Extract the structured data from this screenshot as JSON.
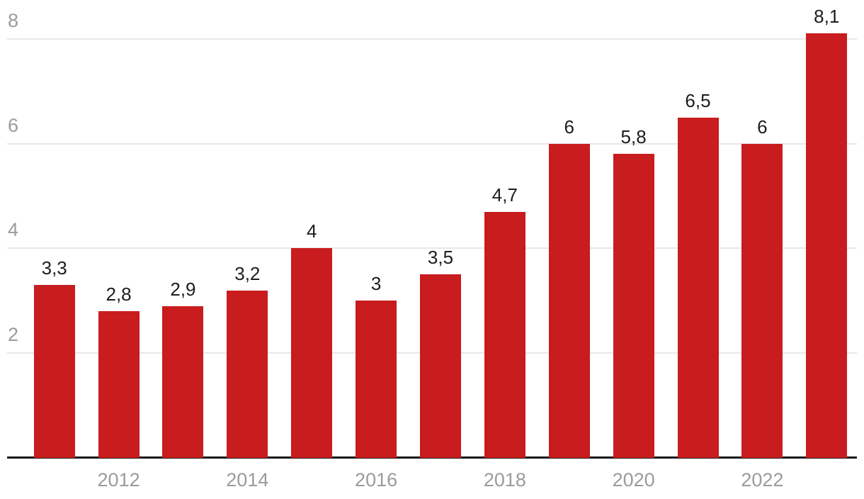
{
  "chart_data": {
    "type": "bar",
    "title": "",
    "xlabel": "",
    "ylabel": "",
    "values": [
      3.3,
      2.8,
      2.9,
      3.2,
      4,
      3,
      3.5,
      4.7,
      6,
      5.8,
      6.5,
      6,
      8.1
    ],
    "value_labels": [
      "3,3",
      "2,8",
      "2,9",
      "3,2",
      "4",
      "3",
      "3,5",
      "4,7",
      "6",
      "5,8",
      "6,5",
      "6",
      "8,1"
    ],
    "x_ticks": [
      {
        "bar_index": 1,
        "label": "2012"
      },
      {
        "bar_index": 3,
        "label": "2014"
      },
      {
        "bar_index": 5,
        "label": "2016"
      },
      {
        "bar_index": 7,
        "label": "2018"
      },
      {
        "bar_index": 9,
        "label": "2020"
      },
      {
        "bar_index": 11,
        "label": "2022"
      }
    ],
    "y_ticks": [
      2,
      4,
      6,
      8
    ],
    "ylim": [
      0,
      8.6
    ],
    "grid": "horizontal",
    "legend": "none",
    "colors": {
      "bar": "#c81c1e",
      "grid": "#e7e7e7",
      "axis_line": "#1a1a1a",
      "tick_text": "#9b9b9b",
      "value_text": "#1d1d1d",
      "background": "#ffffff"
    }
  }
}
